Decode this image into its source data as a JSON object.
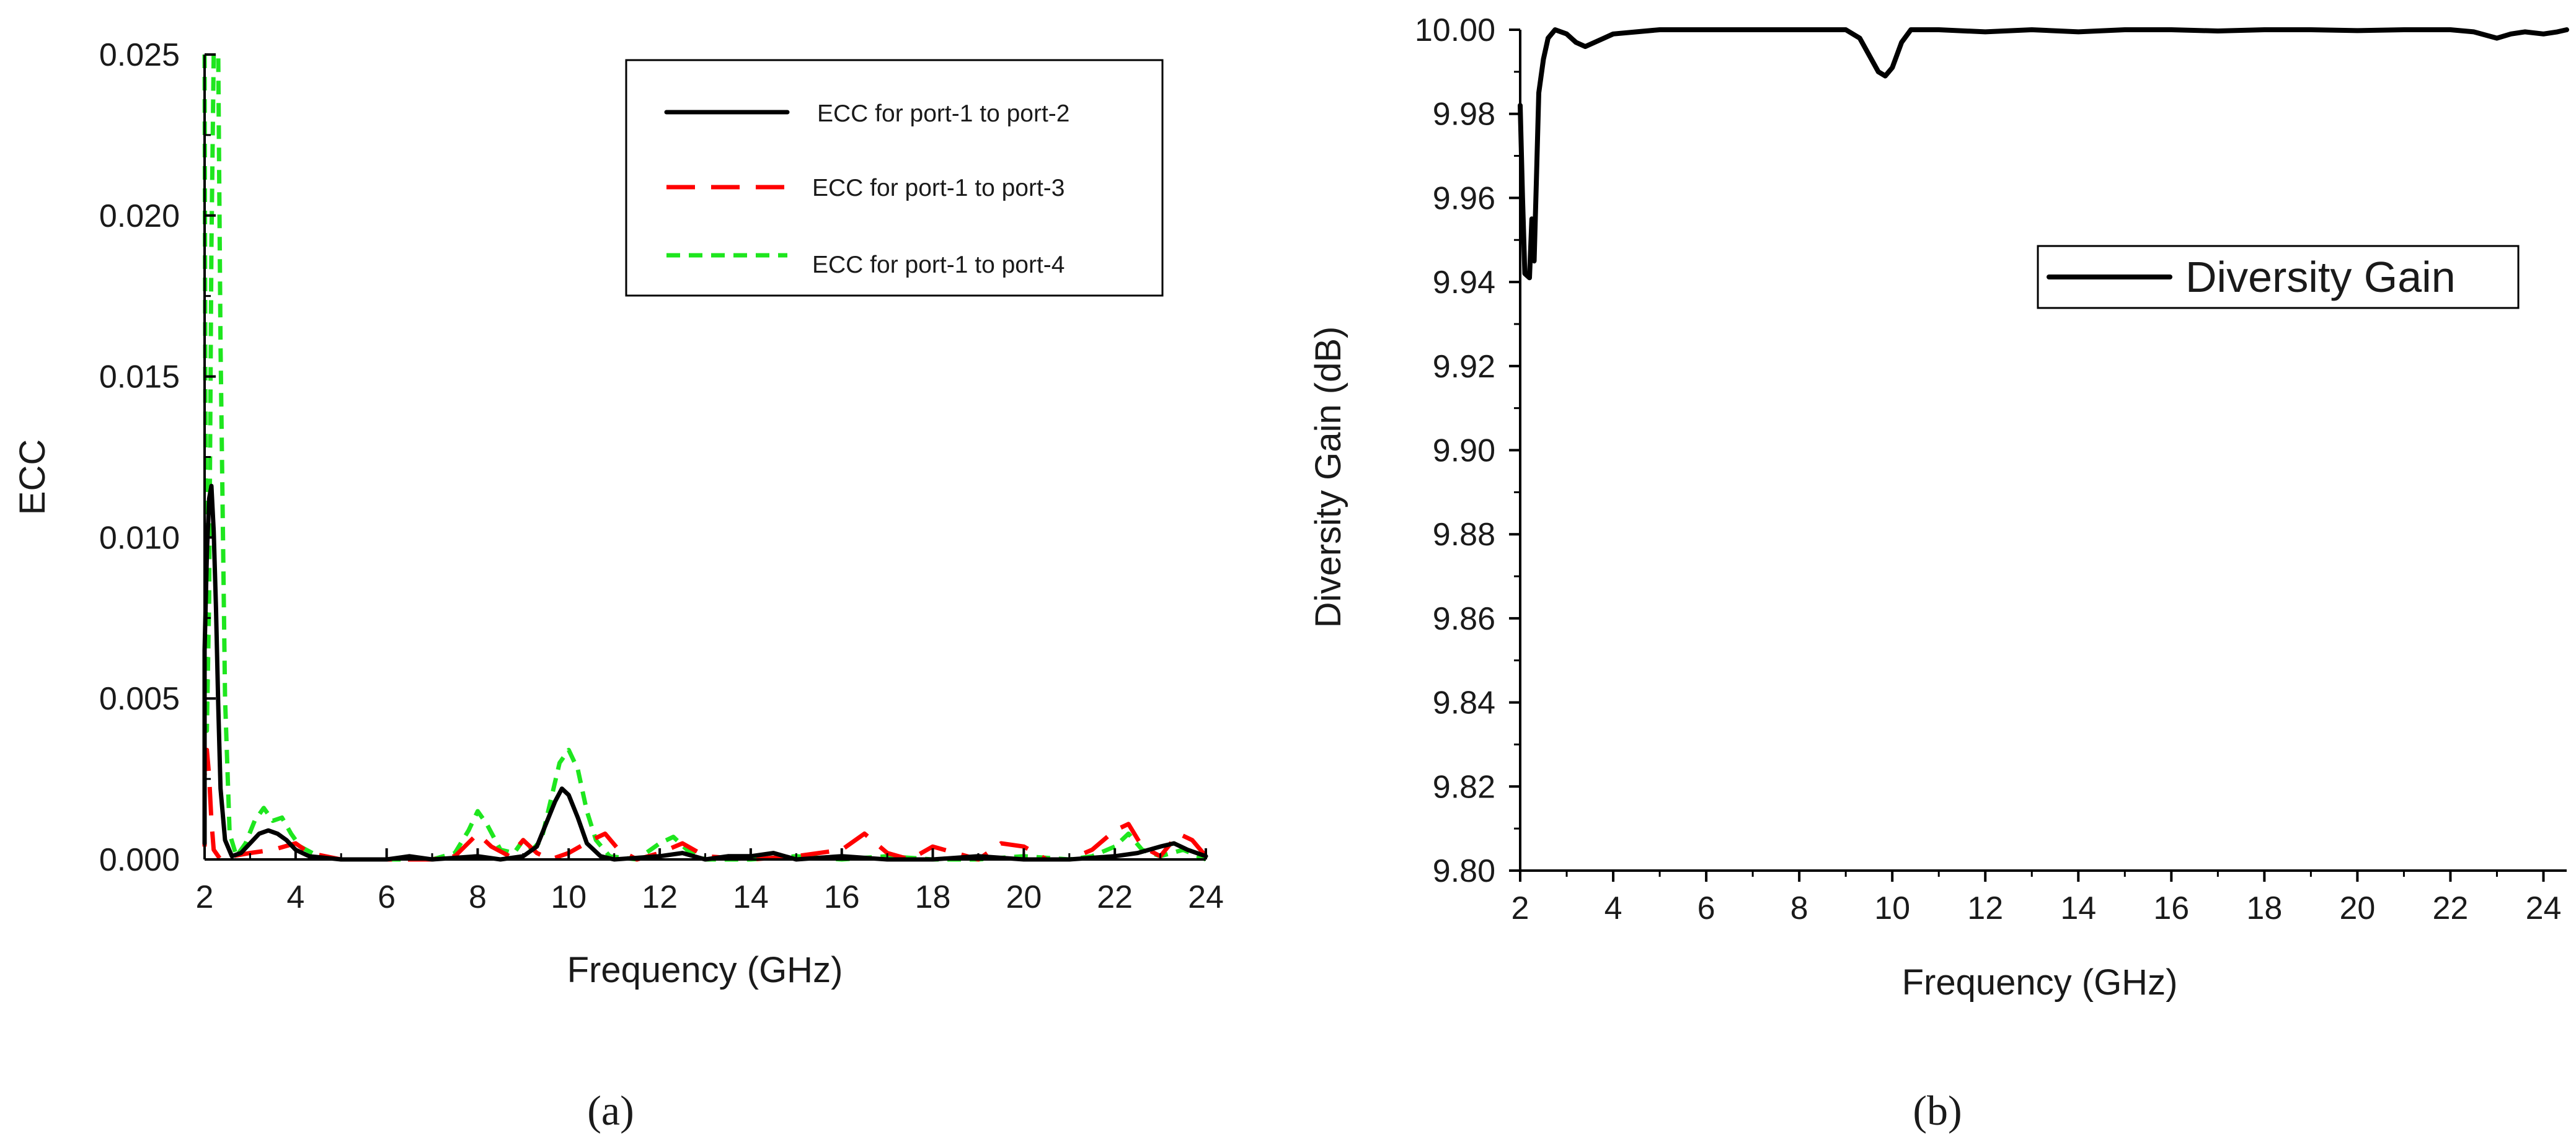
{
  "figure": {
    "panel_a_label": "(a)",
    "panel_b_label": "(b)"
  },
  "chart_data": [
    {
      "type": "line",
      "panel": "a",
      "xlabel": "Frequency (GHz)",
      "ylabel": "ECC",
      "xlim": [
        2,
        24
      ],
      "ylim": [
        0,
        0.025
      ],
      "xticks": [
        2,
        4,
        6,
        8,
        10,
        12,
        14,
        16,
        18,
        20,
        22,
        24
      ],
      "xtick_labels": [
        "2",
        "4",
        "6",
        "8",
        "10",
        "12",
        "14",
        "16",
        "18",
        "20",
        "22",
        "24"
      ],
      "yticks": [
        0,
        0.005,
        0.01,
        0.015,
        0.02,
        0.025
      ],
      "ytick_labels": [
        "0.000",
        "0.005",
        "0.010",
        "0.015",
        "0.020",
        "0.025"
      ],
      "grid": false,
      "legend_position": "top-right",
      "series": [
        {
          "name": "ECC for port-1 to port-2",
          "color": "#000000",
          "dash": "solid",
          "points": [
            [
              1.9,
              0.0005
            ],
            [
              1.95,
              0.0025
            ],
            [
              2.0,
              0.0065
            ],
            [
              2.05,
              0.0095
            ],
            [
              2.1,
              0.0112
            ],
            [
              2.15,
              0.0116
            ],
            [
              2.2,
              0.0102
            ],
            [
              2.25,
              0.0078
            ],
            [
              2.3,
              0.0048
            ],
            [
              2.35,
              0.0022
            ],
            [
              2.45,
              0.0006
            ],
            [
              2.6,
              0.0001
            ],
            [
              2.8,
              0.0002
            ],
            [
              3.0,
              0.0005
            ],
            [
              3.2,
              0.0008
            ],
            [
              3.4,
              0.0009
            ],
            [
              3.6,
              0.0008
            ],
            [
              3.8,
              0.0006
            ],
            [
              4.0,
              0.0003
            ],
            [
              4.3,
              0.0001
            ],
            [
              5.0,
              0.0
            ],
            [
              6.0,
              0.0
            ],
            [
              6.5,
              0.0001
            ],
            [
              7.0,
              0.0
            ],
            [
              8.0,
              0.0001
            ],
            [
              8.5,
              0.0
            ],
            [
              9.0,
              0.0001
            ],
            [
              9.3,
              0.0004
            ],
            [
              9.5,
              0.0011
            ],
            [
              9.7,
              0.0018
            ],
            [
              9.85,
              0.0022
            ],
            [
              10.0,
              0.002
            ],
            [
              10.2,
              0.0013
            ],
            [
              10.4,
              0.0005
            ],
            [
              10.7,
              0.0001
            ],
            [
              11.0,
              0.0
            ],
            [
              12.0,
              0.0001
            ],
            [
              12.5,
              0.0002
            ],
            [
              13.0,
              0.0
            ],
            [
              13.5,
              0.0001
            ],
            [
              14.0,
              0.0001
            ],
            [
              14.5,
              0.0002
            ],
            [
              15.0,
              0.0
            ],
            [
              16.0,
              0.0001
            ],
            [
              17.0,
              0.0
            ],
            [
              18.0,
              0.0
            ],
            [
              19.0,
              0.0001
            ],
            [
              20.0,
              0.0
            ],
            [
              21.0,
              0.0
            ],
            [
              22.0,
              0.0001
            ],
            [
              22.5,
              0.0002
            ],
            [
              23.0,
              0.0004
            ],
            [
              23.3,
              0.0005
            ],
            [
              23.6,
              0.0003
            ],
            [
              24.0,
              0.0001
            ]
          ]
        },
        {
          "name": "ECC for port-1 to port-3",
          "color": "#ff0000",
          "dash": "long-dash",
          "points": [
            [
              1.9,
              0.0004
            ],
            [
              1.95,
              0.0014
            ],
            [
              2.0,
              0.0026
            ],
            [
              2.05,
              0.0034
            ],
            [
              2.1,
              0.0026
            ],
            [
              2.15,
              0.0012
            ],
            [
              2.2,
              0.0003
            ],
            [
              2.35,
              0.0
            ],
            [
              2.6,
              0.0001
            ],
            [
              3.0,
              0.0002
            ],
            [
              3.5,
              0.0003
            ],
            [
              4.0,
              0.0005
            ],
            [
              4.3,
              0.0002
            ],
            [
              5.0,
              0.0
            ],
            [
              6.0,
              0.0
            ],
            [
              7.0,
              0.0
            ],
            [
              7.5,
              0.0001
            ],
            [
              8.0,
              0.0008
            ],
            [
              8.3,
              0.0004
            ],
            [
              8.7,
              0.0001
            ],
            [
              9.0,
              0.0006
            ],
            [
              9.3,
              0.0002
            ],
            [
              9.6,
              0.0
            ],
            [
              10.0,
              0.0002
            ],
            [
              10.5,
              0.0006
            ],
            [
              10.8,
              0.0008
            ],
            [
              11.1,
              0.0003
            ],
            [
              11.5,
              0.0
            ],
            [
              12.0,
              0.0002
            ],
            [
              12.5,
              0.0005
            ],
            [
              13.0,
              0.0001
            ],
            [
              14.0,
              0.0
            ],
            [
              15.0,
              0.0001
            ],
            [
              16.0,
              0.0003
            ],
            [
              16.5,
              0.0008
            ],
            [
              17.0,
              0.0002
            ],
            [
              17.5,
              0.0
            ],
            [
              18.0,
              0.0004
            ],
            [
              18.5,
              0.0002
            ],
            [
              19.0,
              0.0
            ],
            [
              19.5,
              0.0005
            ],
            [
              20.0,
              0.0004
            ],
            [
              20.5,
              0.0
            ],
            [
              21.0,
              0.0
            ],
            [
              21.5,
              0.0003
            ],
            [
              22.0,
              0.0009
            ],
            [
              22.3,
              0.0011
            ],
            [
              22.6,
              0.0004
            ],
            [
              23.0,
              0.0001
            ],
            [
              23.4,
              0.0008
            ],
            [
              23.7,
              0.0006
            ],
            [
              24.0,
              0.0001
            ]
          ]
        },
        {
          "name": "ECC for port-1 to port-4",
          "color": "#1ee61e",
          "dash": "short-dash",
          "points": [
            [
              1.9,
              0.025
            ],
            [
              2.0,
              0.025
            ],
            [
              2.02,
              0.012
            ],
            [
              2.05,
              0.004
            ],
            [
              2.1,
              0.008
            ],
            [
              2.15,
              0.019
            ],
            [
              2.2,
              0.025
            ],
            [
              2.3,
              0.025
            ],
            [
              2.35,
              0.016
            ],
            [
              2.45,
              0.005
            ],
            [
              2.55,
              0.0008
            ],
            [
              2.7,
              0.0001
            ],
            [
              2.9,
              0.0005
            ],
            [
              3.1,
              0.0012
            ],
            [
              3.3,
              0.0016
            ],
            [
              3.5,
              0.0012
            ],
            [
              3.7,
              0.0013
            ],
            [
              3.9,
              0.0008
            ],
            [
              4.1,
              0.0004
            ],
            [
              4.5,
              0.0001
            ],
            [
              5.0,
              0.0
            ],
            [
              6.0,
              0.0
            ],
            [
              7.0,
              0.0
            ],
            [
              7.5,
              0.0002
            ],
            [
              7.8,
              0.0009
            ],
            [
              8.0,
              0.0015
            ],
            [
              8.2,
              0.0011
            ],
            [
              8.5,
              0.0003
            ],
            [
              8.8,
              0.0002
            ],
            [
              9.0,
              0.0006
            ],
            [
              9.2,
              0.0003
            ],
            [
              9.4,
              0.0006
            ],
            [
              9.6,
              0.0018
            ],
            [
              9.8,
              0.003
            ],
            [
              10.0,
              0.0034
            ],
            [
              10.2,
              0.0028
            ],
            [
              10.4,
              0.0015
            ],
            [
              10.6,
              0.0006
            ],
            [
              10.9,
              0.0001
            ],
            [
              11.5,
              0.0
            ],
            [
              12.0,
              0.0005
            ],
            [
              12.3,
              0.0007
            ],
            [
              12.6,
              0.0003
            ],
            [
              13.0,
              0.0
            ],
            [
              14.0,
              0.0
            ],
            [
              15.0,
              0.0001
            ],
            [
              16.0,
              0.0
            ],
            [
              17.0,
              0.0001
            ],
            [
              18.0,
              0.0
            ],
            [
              19.0,
              0.0
            ],
            [
              20.0,
              0.0001
            ],
            [
              21.0,
              0.0
            ],
            [
              21.5,
              0.0001
            ],
            [
              22.0,
              0.0004
            ],
            [
              22.3,
              0.0008
            ],
            [
              22.6,
              0.0003
            ],
            [
              23.0,
              0.0001
            ],
            [
              23.5,
              0.0003
            ],
            [
              24.0,
              0.0
            ]
          ]
        }
      ]
    },
    {
      "type": "line",
      "panel": "b",
      "xlabel": "Frequency (GHz)",
      "ylabel": "Diversity Gain (dB)",
      "xlim": [
        2,
        24.5
      ],
      "ylim": [
        9.8,
        10.0
      ],
      "xticks": [
        2,
        4,
        6,
        8,
        10,
        12,
        14,
        16,
        18,
        20,
        22,
        24
      ],
      "xtick_labels": [
        "2",
        "4",
        "6",
        "8",
        "10",
        "12",
        "14",
        "16",
        "18",
        "20",
        "22",
        "24"
      ],
      "yticks": [
        9.8,
        9.82,
        9.84,
        9.86,
        9.88,
        9.9,
        9.92,
        9.94,
        9.96,
        9.98,
        10.0
      ],
      "ytick_labels": [
        "9.80",
        "9.82",
        "9.84",
        "9.86",
        "9.88",
        "9.90",
        "9.92",
        "9.94",
        "9.96",
        "9.98",
        "10.00"
      ],
      "grid": false,
      "legend_position": "right",
      "series": [
        {
          "name": "Diversity Gain",
          "color": "#000000",
          "dash": "solid",
          "points": [
            [
              2.0,
              9.982
            ],
            [
              2.05,
              9.96
            ],
            [
              2.1,
              9.942
            ],
            [
              2.2,
              9.941
            ],
            [
              2.25,
              9.955
            ],
            [
              2.3,
              9.945
            ],
            [
              2.35,
              9.965
            ],
            [
              2.4,
              9.985
            ],
            [
              2.5,
              9.993
            ],
            [
              2.6,
              9.998
            ],
            [
              2.75,
              10.0
            ],
            [
              3.0,
              9.999
            ],
            [
              3.2,
              9.997
            ],
            [
              3.4,
              9.996
            ],
            [
              3.6,
              9.997
            ],
            [
              3.8,
              9.998
            ],
            [
              4.0,
              9.999
            ],
            [
              4.5,
              9.9995
            ],
            [
              5.0,
              10.0
            ],
            [
              6.0,
              10.0
            ],
            [
              7.0,
              10.0
            ],
            [
              8.0,
              10.0
            ],
            [
              9.0,
              10.0
            ],
            [
              9.3,
              9.998
            ],
            [
              9.5,
              9.994
            ],
            [
              9.7,
              9.99
            ],
            [
              9.85,
              9.989
            ],
            [
              10.0,
              9.991
            ],
            [
              10.2,
              9.997
            ],
            [
              10.4,
              10.0
            ],
            [
              11.0,
              10.0
            ],
            [
              12.0,
              9.9995
            ],
            [
              13.0,
              10.0
            ],
            [
              14.0,
              9.9995
            ],
            [
              15.0,
              10.0
            ],
            [
              16.0,
              10.0
            ],
            [
              17.0,
              9.9997
            ],
            [
              18.0,
              10.0
            ],
            [
              19.0,
              10.0
            ],
            [
              20.0,
              9.9998
            ],
            [
              21.0,
              10.0
            ],
            [
              22.0,
              10.0
            ],
            [
              22.5,
              9.9995
            ],
            [
              23.0,
              9.998
            ],
            [
              23.3,
              9.999
            ],
            [
              23.6,
              9.9995
            ],
            [
              24.0,
              9.999
            ],
            [
              24.3,
              9.9995
            ],
            [
              24.5,
              10.0
            ]
          ]
        }
      ]
    }
  ]
}
